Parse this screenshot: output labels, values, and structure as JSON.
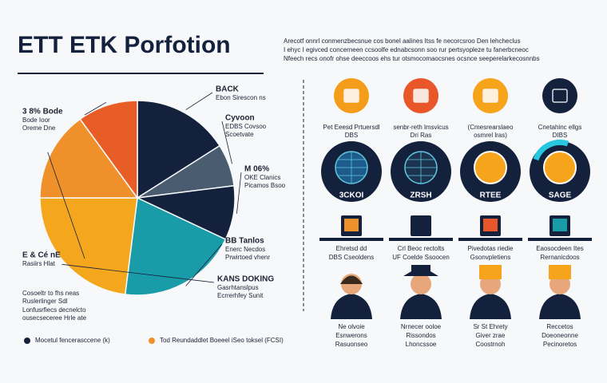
{
  "chart_data": {
    "type": "pie",
    "title": "ETT ETK Porfotion",
    "categories": [
      "BACK",
      "Cyvoon",
      "M 06%",
      "BB Tanlos",
      "KANS DOKING",
      "E & Cé nE",
      "3 8% Bode"
    ],
    "category_notes": [
      [
        "Ebon Sirescon ns"
      ],
      [
        "EDBS Covsoo",
        "Scoetvate"
      ],
      [
        "OKE Clanics",
        "Picamos Bsoo"
      ],
      [
        "Enerc Necdos",
        "Prwirtoed vhenr"
      ],
      [
        "Gasrhtanslpus",
        "Ecrrerhfey Sunit"
      ],
      [
        "Rasiirs Hlat"
      ],
      [
        "Bode Ioor",
        "Oreme Dne"
      ]
    ],
    "values": [
      16,
      7,
      9,
      20,
      23,
      15,
      10
    ],
    "colors": [
      "#14213d",
      "#4a5d70",
      "#14213d",
      "#1a9ba8",
      "#f4a71d",
      "#f0902a",
      "#e85d25"
    ]
  },
  "description": [
    "Arecotf onnrl conmenzbecsnue cos bonel aalines Itss fe necorcsroo Den lehcheclus",
    "I ehyc I egivced concerneen ccsoolfe ednabcsonn soo rur pertsyopleze tu fanerbcneoc",
    "Nfeech recs onofr ohse deeccoos ehs tur otsmocomaocsnes ocsnce seeperelarkecosnnbs"
  ],
  "side_notes": [
    "Cosoeltr to fhs neas",
    "Ruslerlinger Sdl",
    "Lonfusrfiecs decnelcto",
    "ousecseceree Hrle ate"
  ],
  "legend": [
    "Mocetul fencerasccene (k)",
    "Tod Reundaddlet Boeeel iSeo toksel (FCSI)"
  ],
  "profiles": [
    {
      "top": [
        "Pet Eeesd Prtuersdl",
        "DBS"
      ],
      "badge": "3CKOI",
      "caption": [
        "Ehretsd dd",
        "DBS Cseoldens"
      ],
      "name": [
        "Ne olvoie",
        "Esnwerons",
        "Rasuonseo"
      ]
    },
    {
      "top": [
        "senbr-reth lmsvicus",
        "Dri Ras"
      ],
      "badge": "ZRSH",
      "caption": [
        "Crl Beoc rectolts",
        "UF Coelde Ssoocen"
      ],
      "name": [
        "Nrnecer ooloe",
        "Rissondos",
        "Lhoncssoe"
      ]
    },
    {
      "top": [
        "(Cmesrearslaeo",
        "osmrel lras)"
      ],
      "badge": "RTEE",
      "caption": [
        "Pivedotas riedie",
        "Gsonvpletiens"
      ],
      "name": [
        "Sr St Ehrety",
        "Giver zrae",
        "Coostrnoh"
      ]
    },
    {
      "top": [
        "Cnetahinc ellgs",
        "DIBS"
      ],
      "badge": "SAGE",
      "caption": [
        "Eaosocdeen Ites",
        "Rernanicdoos"
      ],
      "name": [
        "Reccetos",
        "Doeoneonne",
        "Pecinoretos"
      ]
    }
  ]
}
